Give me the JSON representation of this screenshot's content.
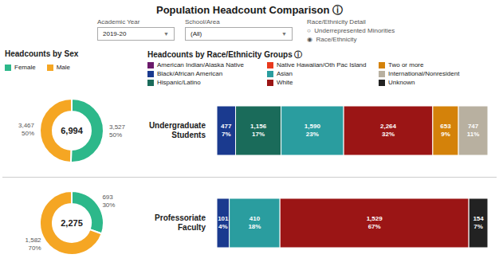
{
  "title": "Population Headcount Comparison ⓘ",
  "filters": [
    {
      "label": "Academic Year",
      "value": "2019-20",
      "icon": "▼"
    },
    {
      "label": "School/Area",
      "value": "(All)",
      "icon": "▼"
    },
    {
      "label": "Race/Ethnicity Detail",
      "options": [
        "○  Underrepresented Minorities",
        "◉  Race/Ethnicity"
      ]
    }
  ],
  "race_legend": [
    {
      "name": "American Indian/Alaska Native",
      "color": "#6b1a6b"
    },
    {
      "name": "Native Hawaiian/Oth Pac Island",
      "color": "#e8391d"
    },
    {
      "name": "Two or more",
      "color": "#d4820a"
    },
    {
      "name": "Black/African American",
      "color": "#1a3a8f"
    },
    {
      "name": "Asian",
      "color": "#2a9d9f"
    },
    {
      "name": "International/Nonresident",
      "color": "#b8b0a0"
    },
    {
      "name": "Hispanic/Latino",
      "color": "#1a6b5a"
    },
    {
      "name": "White",
      "color": "#9b1515"
    },
    {
      "name": "Unknown",
      "color": "#222222"
    }
  ],
  "chart_data": [
    {
      "type": "pie",
      "title": "Headcounts by Sex",
      "legend": "top",
      "categories": [
        "Female",
        "Male"
      ],
      "values": [
        3527,
        3467
      ],
      "colors": [
        "#2db88a",
        "#f5a623"
      ],
      "data_labels": true,
      "value_labels": [
        "3,527\n50%",
        "3,467\n50%"
      ],
      "annotations": [
        "6,994"
      ]
    },
    {
      "type": "bar",
      "title": "Headcounts by Race/Ethnicity Groups ⓘ",
      "orientation": "horizontal",
      "stacked": true,
      "data_labels": true,
      "tick_labels": "y",
      "categories": [
        "Undergraduate\nStudents"
      ],
      "series": [
        {
          "color": "#1a3a8f",
          "values": [
            477
          ],
          "value_labels": [
            "477\n7%"
          ]
        },
        {
          "color": "#1a6b5a",
          "values": [
            1156
          ],
          "value_labels": [
            "1,156\n17%"
          ]
        },
        {
          "color": "#2a9d9f",
          "values": [
            1590
          ],
          "value_labels": [
            "1,590\n23%"
          ]
        },
        {
          "color": "#9b1515",
          "values": [
            2264
          ],
          "value_labels": [
            "2,264\n32%"
          ]
        },
        {
          "color": "#d4820a",
          "values": [
            653
          ],
          "value_labels": [
            "653\n9%"
          ]
        },
        {
          "color": "#b8b0a0",
          "values": [
            747
          ],
          "value_labels": [
            "747\n11%"
          ]
        }
      ]
    },
    {
      "type": "pie",
      "categories": [
        "Female",
        "Male"
      ],
      "values": [
        693,
        1582
      ],
      "colors": [
        "#2db88a",
        "#f5a623"
      ],
      "data_labels": true,
      "value_labels": [
        "693\n30%",
        "1,582\n70%"
      ],
      "annotations": [
        "2,275"
      ]
    },
    {
      "type": "bar",
      "orientation": "horizontal",
      "stacked": true,
      "data_labels": true,
      "tick_labels": "y",
      "categories": [
        "Professoriate\nFaculty"
      ],
      "series": [
        {
          "color": "#1a3a8f",
          "values": [
            101
          ],
          "value_labels": [
            "101\n4%"
          ]
        },
        {
          "color": "#2a9d9f",
          "values": [
            410
          ],
          "value_labels": [
            "410\n18%"
          ]
        },
        {
          "color": "#9b1515",
          "values": [
            1529
          ],
          "value_labels": [
            "1,529\n67%"
          ]
        },
        {
          "color": "#222222",
          "values": [
            154
          ],
          "value_labels": [
            "154\n7%"
          ]
        }
      ]
    }
  ]
}
